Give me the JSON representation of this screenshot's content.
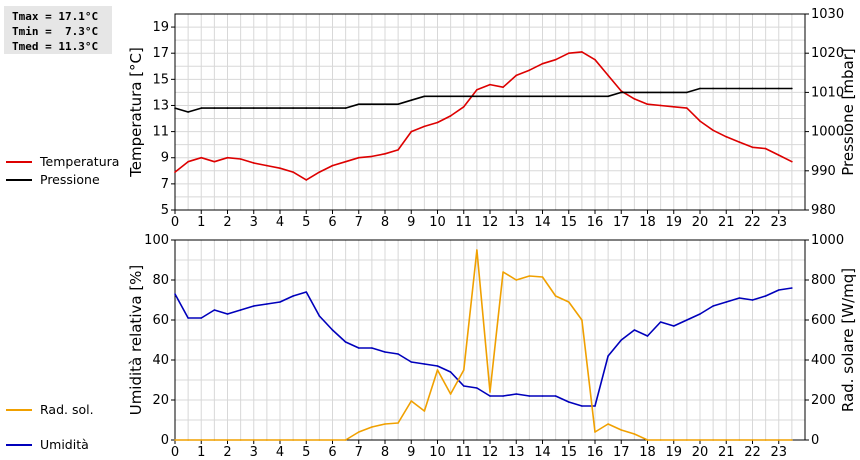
{
  "stats": {
    "tmax": "Tmax = 17.1°C",
    "tmin": "Tmin =  7.3°C",
    "tmed": "Tmed = 11.3°C"
  },
  "legend_top": [
    {
      "label": "Temperatura",
      "color": "#dd0000"
    },
    {
      "label": "Pressione",
      "color": "#000000"
    }
  ],
  "legend_bottom": [
    {
      "label": "Umidità",
      "color": "#0000bb"
    },
    {
      "label": "Rad. sol.",
      "color": "#f0a000"
    }
  ],
  "chart_data": [
    {
      "type": "line",
      "x_ticks": [
        "0",
        "1",
        "2",
        "3",
        "4",
        "5",
        "6",
        "7",
        "8",
        "9",
        "10",
        "11",
        "12",
        "13",
        "14",
        "15",
        "16",
        "17",
        "18",
        "19",
        "20",
        "21",
        "22",
        "23"
      ],
      "xlim": [
        0,
        24
      ],
      "ylabel": "Temperatura [°C]",
      "ylim": [
        5,
        20
      ],
      "y_ticks": [
        "5",
        "7",
        "9",
        "11",
        "13",
        "15",
        "17",
        "19"
      ],
      "ylabel_right": "Pressione [mbar]",
      "ylim_right": [
        980,
        1030
      ],
      "y_ticks_right": [
        "980",
        "990",
        "1000",
        "1010",
        "1020",
        "1030"
      ],
      "grid": true,
      "series": [
        {
          "name": "Temperatura",
          "color": "#dd0000",
          "axis": "left",
          "x": [
            0,
            0.5,
            1,
            1.5,
            2,
            2.5,
            3,
            3.5,
            4,
            4.5,
            5,
            5.5,
            6,
            6.5,
            7,
            7.5,
            8,
            8.5,
            9,
            9.5,
            10,
            10.5,
            11,
            11.5,
            12,
            12.5,
            13,
            13.5,
            14,
            14.5,
            15,
            15.5,
            16,
            16.5,
            17,
            17.5,
            18,
            18.5,
            19,
            19.5,
            20,
            20.5,
            21,
            21.5,
            22,
            22.5,
            23,
            23.5
          ],
          "values": [
            7.9,
            8.7,
            9.0,
            8.7,
            9.0,
            8.9,
            8.6,
            8.4,
            8.2,
            7.9,
            7.3,
            7.9,
            8.4,
            8.7,
            9.0,
            9.1,
            9.3,
            9.6,
            11.0,
            11.4,
            11.7,
            12.2,
            12.9,
            14.2,
            14.6,
            14.4,
            15.3,
            15.7,
            16.2,
            16.5,
            17.0,
            17.1,
            16.5,
            15.3,
            14.1,
            13.5,
            13.1,
            13.0,
            12.9,
            12.8,
            11.8,
            11.1,
            10.6,
            10.2,
            9.8,
            9.7,
            9.2,
            8.7
          ]
        },
        {
          "name": "Pressione",
          "color": "#000000",
          "axis": "right",
          "x": [
            0,
            0.5,
            1,
            1.5,
            2,
            2.5,
            3,
            3.5,
            4,
            4.5,
            5,
            5.5,
            6,
            6.5,
            7,
            7.5,
            8,
            8.5,
            9,
            9.5,
            10,
            10.5,
            11,
            11.5,
            12,
            12.5,
            13,
            13.5,
            14,
            14.5,
            15,
            15.5,
            16,
            16.5,
            17,
            17.5,
            18,
            18.5,
            19,
            19.5,
            20,
            20.5,
            21,
            21.5,
            22,
            22.5,
            23,
            23.5
          ],
          "values": [
            1006,
            1005,
            1006,
            1006,
            1006,
            1006,
            1006,
            1006,
            1006,
            1006,
            1006,
            1006,
            1006,
            1006,
            1007,
            1007,
            1007,
            1007,
            1008,
            1009,
            1009,
            1009,
            1009,
            1009,
            1009,
            1009,
            1009,
            1009,
            1009,
            1009,
            1009,
            1009,
            1009,
            1009,
            1010,
            1010,
            1010,
            1010,
            1010,
            1010,
            1011,
            1011,
            1011,
            1011,
            1011,
            1011,
            1011,
            1011
          ]
        }
      ]
    },
    {
      "type": "line",
      "x_ticks": [
        "0",
        "1",
        "2",
        "3",
        "4",
        "5",
        "6",
        "7",
        "8",
        "9",
        "10",
        "11",
        "12",
        "13",
        "14",
        "15",
        "16",
        "17",
        "18",
        "19",
        "20",
        "21",
        "22",
        "23"
      ],
      "xlim": [
        0,
        24
      ],
      "ylabel": "Umidità relativa [%]",
      "ylim": [
        0,
        100
      ],
      "y_ticks": [
        "0",
        "20",
        "40",
        "60",
        "80",
        "100"
      ],
      "ylabel_right": "Rad. solare [W/mq]",
      "ylim_right": [
        0,
        1000
      ],
      "y_ticks_right": [
        "0",
        "200",
        "400",
        "600",
        "800",
        "1000"
      ],
      "grid": true,
      "series": [
        {
          "name": "Umidità",
          "color": "#0000bb",
          "axis": "left",
          "x": [
            0,
            0.5,
            1,
            1.5,
            2,
            2.5,
            3,
            3.5,
            4,
            4.5,
            5,
            5.5,
            6,
            6.5,
            7,
            7.5,
            8,
            8.5,
            9,
            9.5,
            10,
            10.5,
            11,
            11.5,
            12,
            12.5,
            13,
            13.5,
            14,
            14.5,
            15,
            15.5,
            16,
            16.5,
            17,
            17.5,
            18,
            18.5,
            19,
            19.5,
            20,
            20.5,
            21,
            21.5,
            22,
            22.5,
            23,
            23.5
          ],
          "values": [
            73,
            61,
            61,
            65,
            63,
            65,
            67,
            68,
            69,
            72,
            74,
            62,
            55,
            49,
            46,
            46,
            44,
            43,
            39,
            38,
            37,
            34,
            27,
            26,
            22,
            22,
            23,
            22,
            22,
            22,
            19,
            17,
            17,
            42,
            50,
            55,
            52,
            59,
            57,
            60,
            63,
            67,
            69,
            71,
            70,
            72,
            75,
            76
          ]
        },
        {
          "name": "Rad. sol.",
          "color": "#f0a000",
          "axis": "right",
          "x": [
            0,
            0.5,
            1,
            1.5,
            2,
            2.5,
            3,
            3.5,
            4,
            4.5,
            5,
            5.5,
            6,
            6.5,
            7,
            7.5,
            8,
            8.5,
            9,
            9.5,
            10,
            10.5,
            11,
            11.5,
            12,
            12.5,
            13,
            13.5,
            14,
            14.5,
            15,
            15.5,
            16,
            16.5,
            17,
            17.5,
            18,
            18.5,
            19,
            19.5,
            20,
            20.5,
            21,
            21.5,
            22,
            22.5,
            23,
            23.5
          ],
          "values": [
            0,
            0,
            0,
            0,
            0,
            0,
            0,
            0,
            0,
            0,
            0,
            0,
            0,
            0,
            40,
            65,
            80,
            85,
            195,
            145,
            350,
            230,
            350,
            950,
            240,
            840,
            800,
            820,
            815,
            720,
            690,
            600,
            40,
            80,
            50,
            30,
            0,
            0,
            0,
            0,
            0,
            0,
            0,
            0,
            0,
            0,
            0,
            0
          ]
        }
      ]
    }
  ]
}
